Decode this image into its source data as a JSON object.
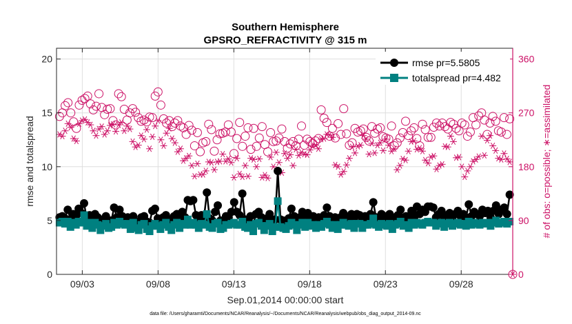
{
  "chart_data": {
    "type": "line",
    "title": "Southern Hemisphere",
    "subtitle": "GPSRO_REFRACTIVITY @ 315 m",
    "xlabel": "Sep.01,2014 00:00:00 start",
    "ylabel_left": "rmse and totalspread",
    "ylabel_right": "# of obs: o=possible; ∗=assimilated",
    "footnote": "data file: /Users/gharamti/Documents/NCAR/Reanalysis/~/Documents/NCAR/Reanalysis/webpub/obs_diag_output_2014-09.nc",
    "x_unit": "days since Sep 1 2014",
    "xlim": [
      0.8,
      30.9
    ],
    "x_ticks": [
      2.5,
      7.5,
      12.5,
      17.5,
      22.5,
      27.5
    ],
    "x_tick_labels": [
      "09/03",
      "09/08",
      "09/13",
      "09/18",
      "09/23",
      "09/28"
    ],
    "ylim_left": [
      0,
      21
    ],
    "y_ticks_left": [
      0,
      5,
      10,
      15,
      20
    ],
    "y_tick_labels_left": [
      "0",
      "5",
      "10",
      "15",
      "20"
    ],
    "ylim_right": [
      0,
      378
    ],
    "y_ticks_right": [
      0,
      90,
      180,
      270,
      360
    ],
    "y_tick_labels_right": [
      "0",
      "90",
      "180",
      "270",
      "360"
    ],
    "grid": true,
    "legend_position": "top-right",
    "colors": {
      "rmse": "#000000",
      "spread": "#008080",
      "obs": "#cc1166"
    },
    "series": [
      {
        "name": "rmse pr=5.5805",
        "axis": "left",
        "marker": "filled-circle",
        "values": [
          5.3,
          5.4,
          5.2,
          6.0,
          5.1,
          5.6,
          5.4,
          6.1,
          5.7,
          6.6,
          5.1,
          5.5,
          4.9,
          5.6,
          5.3,
          4.7,
          5.1,
          5.4,
          4.9,
          5.0,
          6.2,
          5.3,
          6.0,
          5.4,
          5.2,
          5.3,
          4.9,
          5.4,
          4.9,
          4.7,
          5.3,
          5.4,
          4.9,
          4.8,
          5.9,
          6.1,
          5.2,
          4.8,
          5.3,
          5.5,
          5.1,
          4.8,
          5.4,
          5.6,
          5.0,
          5.8,
          5.3,
          6.9,
          6.8,
          6.9,
          5.5,
          5.1,
          5.5,
          5.4,
          7.6,
          5.2,
          5.0,
          5.8,
          6.4,
          5.0,
          4.9,
          5.4,
          5.3,
          5.8,
          6.7,
          5.8,
          5.5,
          7.5,
          5.1,
          4.9,
          5.4,
          4.6,
          5.6,
          5.8,
          5.3,
          4.8,
          5.2,
          5.6,
          4.6,
          5.1,
          9.6,
          5.1,
          5.0,
          4.9,
          5.2,
          6.1,
          5.4,
          4.7,
          5.3,
          5.8,
          5.1,
          5.7,
          5.2,
          5.4,
          5.0,
          5.3,
          5.1,
          5.5,
          6.2,
          5.4,
          5.0,
          5.3,
          4.9,
          5.3,
          5.7,
          5.4,
          5.2,
          5.6,
          5.0,
          5.6,
          5.5,
          5.0,
          5.4,
          5.3,
          5.6,
          6.7,
          5.3,
          5.1,
          5.6,
          5.4,
          5.2,
          5.6,
          4.9,
          5.3,
          5.5,
          6.0,
          5.2,
          5.4,
          5.0,
          5.9,
          5.3,
          6.3,
          5.6,
          6.0,
          5.8,
          6.3,
          6.3,
          6.2,
          5.3,
          5.6,
          5.9,
          5.2,
          5.5,
          5.7,
          5.3,
          5.6,
          5.9,
          5.4,
          5.6,
          5.3,
          6.5,
          5.4,
          5.8,
          5.6,
          5.4,
          6.0,
          5.7,
          5.9,
          5.3,
          5.9,
          6.4,
          5.6,
          6.0,
          6.2,
          5.6,
          7.4
        ]
      },
      {
        "name": "totalspread pr=4.482",
        "axis": "left",
        "marker": "filled-square",
        "values": [
          4.8,
          4.9,
          4.7,
          4.9,
          4.4,
          4.8,
          4.6,
          4.9,
          4.8,
          5.5,
          4.5,
          4.8,
          4.3,
          4.8,
          4.6,
          4.1,
          4.5,
          4.7,
          4.3,
          4.4,
          4.8,
          4.6,
          4.9,
          4.7,
          4.6,
          4.7,
          4.2,
          4.8,
          4.3,
          4.1,
          4.6,
          4.7,
          4.2,
          4.0,
          4.5,
          4.7,
          4.5,
          4.2,
          4.6,
          4.8,
          4.4,
          4.1,
          4.6,
          4.8,
          4.3,
          4.7,
          4.6,
          5.1,
          4.6,
          4.8,
          4.6,
          4.3,
          4.7,
          4.6,
          5.6,
          4.4,
          4.3,
          4.7,
          4.8,
          4.2,
          4.3,
          4.6,
          4.6,
          4.7,
          4.8,
          4.6,
          4.6,
          4.9,
          4.4,
          4.3,
          4.6,
          4.0,
          4.7,
          4.8,
          4.5,
          4.1,
          4.5,
          4.7,
          4.0,
          4.4,
          6.8,
          4.4,
          4.3,
          4.2,
          4.5,
          4.8,
          4.6,
          4.1,
          4.6,
          4.8,
          4.4,
          4.8,
          4.5,
          4.6,
          4.3,
          4.6,
          4.4,
          4.7,
          4.9,
          4.6,
          4.3,
          4.6,
          4.2,
          4.6,
          4.8,
          4.6,
          4.5,
          4.7,
          4.3,
          4.7,
          4.7,
          4.3,
          4.6,
          4.6,
          4.7,
          5.2,
          4.6,
          4.4,
          4.7,
          4.6,
          4.5,
          4.7,
          4.2,
          4.6,
          4.7,
          4.9,
          4.5,
          4.6,
          4.3,
          4.8,
          4.6,
          4.8,
          4.7,
          4.6,
          4.8,
          4.9,
          4.8,
          4.8,
          4.5,
          4.7,
          4.8,
          4.4,
          4.7,
          4.8,
          4.5,
          4.7,
          4.8,
          4.6,
          4.7,
          4.5,
          4.9,
          4.6,
          4.8,
          4.7,
          4.6,
          4.8,
          4.7,
          4.8,
          4.5,
          4.8,
          5.0,
          4.7,
          4.8,
          4.9,
          4.7,
          4.9
        ]
      },
      {
        "name": "obs possible",
        "axis": "right",
        "marker": "open-circle",
        "values": [
          264,
          270,
          282,
          287,
          270,
          255,
          244,
          283,
          291,
          294,
          298,
          285,
          275,
          281,
          302,
          279,
          267,
          276,
          277,
          257,
          250,
          302,
          297,
          276,
          258,
          270,
          277,
          271,
          262,
          256,
          258,
          255,
          263,
          262,
          298,
          305,
          283,
          260,
          253,
          257,
          247,
          253,
          257,
          248,
          245,
          234,
          249,
          241,
          215,
          237,
          205,
          220,
          222,
          251,
          242,
          206,
          225,
          235,
          236,
          238,
          250,
          238,
          202,
          227,
          254,
          214,
          231,
          245,
          209,
          244,
          214,
          228,
          247,
          217,
          205,
          237,
          222,
          223,
          228,
          243,
          222,
          211,
          218,
          222,
          215,
          226,
          248,
          216,
          226,
          222,
          219,
          223,
          227,
          275,
          261,
          254,
          231,
          244,
          228,
          252,
          234,
          277,
          235,
          216,
          220,
          244,
          238,
          240,
          243,
          229,
          223,
          247,
          236,
          243,
          245,
          230,
          228,
          226,
          248,
          215,
          220,
          228,
          237,
          256,
          232,
          240,
          245,
          227,
          215,
          251,
          242,
          229,
          229,
          246,
          253,
          248,
          253,
          247,
          243,
          254,
          251,
          244,
          240,
          253,
          250,
          231,
          238,
          262,
          250,
          265,
          270,
          258,
          234,
          253,
          264,
          256,
          240,
          238,
          262,
          234,
          260
        ]
      },
      {
        "name": "obs assimilated",
        "axis": "right",
        "marker": "asterisk",
        "values": [
          234,
          231,
          240,
          252,
          246,
          227,
          223,
          252,
          257,
          259,
          254,
          250,
          240,
          232,
          243,
          247,
          234,
          240,
          249,
          251,
          239,
          250,
          254,
          240,
          248,
          243,
          222,
          213,
          216,
          232,
          226,
          242,
          210,
          230,
          248,
          257,
          225,
          215,
          236,
          244,
          227,
          220,
          205,
          210,
          190,
          194,
          198,
          182,
          164,
          185,
          167,
          167,
          173,
          188,
          187,
          175,
          188,
          189,
          201,
          189,
          193,
          187,
          162,
          194,
          168,
          163,
          182,
          164,
          194,
          192,
          180,
          193,
          162,
          166,
          161,
          196,
          180,
          204,
          187,
          170,
          202,
          194,
          200,
          182,
          209,
          199,
          204,
          201,
          200,
          208,
          214,
          216,
          210,
          226,
          227,
          234,
          233,
          229,
          183,
          180,
          167,
          172,
          183,
          194,
          213,
          203,
          214,
          216,
          232,
          226,
          201,
          219,
          203,
          216,
          220,
          207,
          226,
          216,
          206,
          210,
          175,
          182,
          193,
          191,
          206,
          222,
          223,
          209,
          211,
          206,
          191,
          186,
          196,
          198,
          176,
          182,
          184,
          214,
          213,
          231,
          222,
          195,
          196,
          180,
          163,
          173,
          180,
          189,
          192,
          197,
          231,
          199,
          224,
          232,
          215,
          207,
          194,
          192,
          202,
          193,
          188
        ]
      }
    ]
  }
}
